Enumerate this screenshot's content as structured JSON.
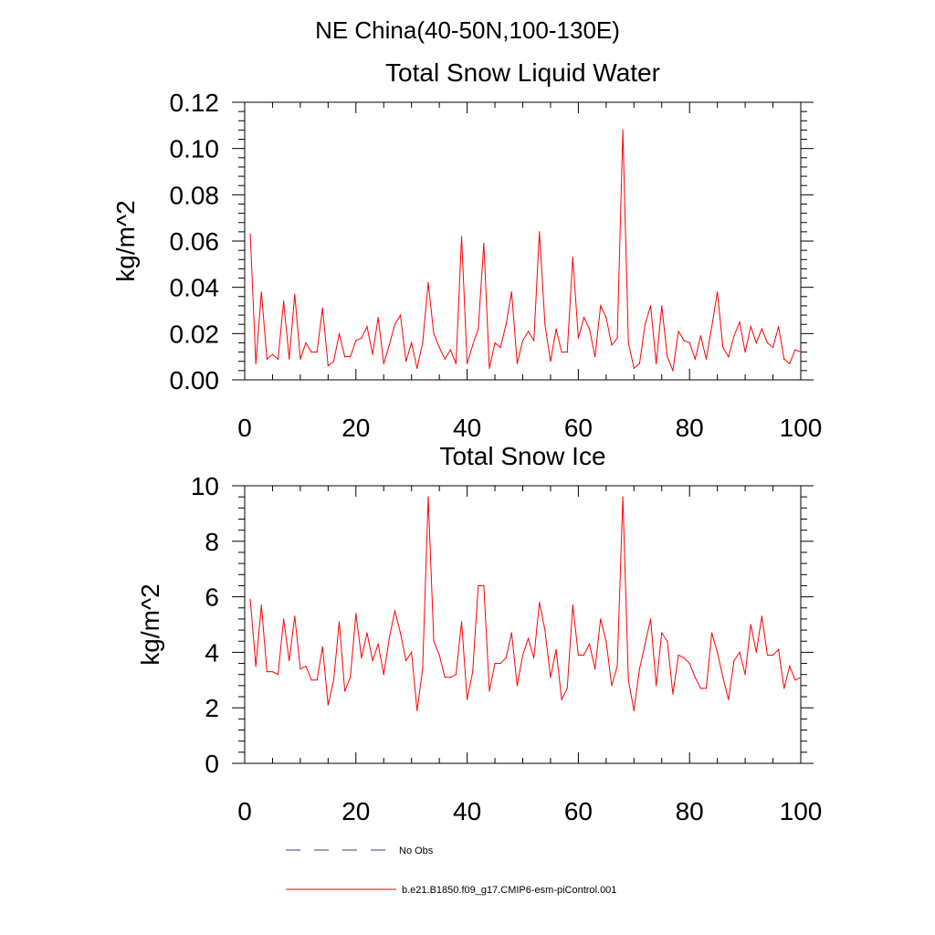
{
  "figure": {
    "suptitle": "NE China(40-50N,100-130E)"
  },
  "legend": {
    "items": [
      {
        "label": "No Obs",
        "color": "#3a3a8a",
        "dash": "dashed"
      },
      {
        "label": "b.e21.B1850.f09_g17.CMIP6-esm-piControl.001",
        "color": "#ff0000",
        "dash": "solid"
      }
    ]
  },
  "chart_data": [
    {
      "type": "line",
      "title": "Total Snow Liquid Water",
      "xlabel": "",
      "ylabel": "kg/m^2",
      "xlim": [
        0,
        100
      ],
      "ylim": [
        0,
        0.12
      ],
      "xticks": [
        "0",
        "20",
        "40",
        "60",
        "80",
        "100"
      ],
      "yticks": [
        "0.00",
        "0.02",
        "0.04",
        "0.06",
        "0.08",
        "0.10",
        "0.12"
      ],
      "grid": false,
      "series": [
        {
          "name": "b.e21.B1850.f09_g17.CMIP6-esm-piControl.001",
          "color": "#ff0000",
          "x": [
            1,
            2,
            3,
            4,
            5,
            6,
            7,
            8,
            9,
            10,
            11,
            12,
            13,
            14,
            15,
            16,
            17,
            18,
            19,
            20,
            21,
            22,
            23,
            24,
            25,
            26,
            27,
            28,
            29,
            30,
            31,
            32,
            33,
            34,
            35,
            36,
            37,
            38,
            39,
            40,
            41,
            42,
            43,
            44,
            45,
            46,
            47,
            48,
            49,
            50,
            51,
            52,
            53,
            54,
            55,
            56,
            57,
            58,
            59,
            60,
            61,
            62,
            63,
            64,
            65,
            66,
            67,
            68,
            69,
            70,
            71,
            72,
            73,
            74,
            75,
            76,
            77,
            78,
            79,
            80,
            81,
            82,
            83,
            84,
            85,
            86,
            87,
            88,
            89,
            90,
            91,
            92,
            93,
            94,
            95,
            96,
            97,
            98,
            99,
            100
          ],
          "values": [
            0.063,
            0.007,
            0.038,
            0.009,
            0.011,
            0.009,
            0.034,
            0.009,
            0.037,
            0.009,
            0.016,
            0.012,
            0.012,
            0.031,
            0.006,
            0.008,
            0.02,
            0.01,
            0.01,
            0.017,
            0.018,
            0.023,
            0.011,
            0.027,
            0.007,
            0.015,
            0.024,
            0.028,
            0.008,
            0.016,
            0.005,
            0.016,
            0.042,
            0.02,
            0.014,
            0.009,
            0.013,
            0.007,
            0.062,
            0.007,
            0.015,
            0.022,
            0.059,
            0.005,
            0.016,
            0.014,
            0.024,
            0.038,
            0.007,
            0.017,
            0.021,
            0.017,
            0.064,
            0.024,
            0.008,
            0.022,
            0.012,
            0.012,
            0.053,
            0.018,
            0.027,
            0.022,
            0.01,
            0.032,
            0.027,
            0.015,
            0.018,
            0.108,
            0.016,
            0.005,
            0.007,
            0.024,
            0.032,
            0.007,
            0.032,
            0.01,
            0.004,
            0.021,
            0.017,
            0.016,
            0.009,
            0.019,
            0.009,
            0.023,
            0.038,
            0.014,
            0.01,
            0.019,
            0.025,
            0.012,
            0.023,
            0.016,
            0.022,
            0.016,
            0.014,
            0.023,
            0.009,
            0.007,
            0.013,
            0.012
          ]
        }
      ]
    },
    {
      "type": "line",
      "title": "Total Snow Ice",
      "xlabel": "",
      "ylabel": "kg/m^2",
      "xlim": [
        0,
        100
      ],
      "ylim": [
        0,
        10
      ],
      "xticks": [
        "0",
        "20",
        "40",
        "60",
        "80",
        "100"
      ],
      "yticks": [
        "0",
        "2",
        "4",
        "6",
        "8",
        "10"
      ],
      "grid": false,
      "series": [
        {
          "name": "b.e21.B1850.f09_g17.CMIP6-esm-piControl.001",
          "color": "#ff0000",
          "x": [
            1,
            2,
            3,
            4,
            5,
            6,
            7,
            8,
            9,
            10,
            11,
            12,
            13,
            14,
            15,
            16,
            17,
            18,
            19,
            20,
            21,
            22,
            23,
            24,
            25,
            26,
            27,
            28,
            29,
            30,
            31,
            32,
            33,
            34,
            35,
            36,
            37,
            38,
            39,
            40,
            41,
            42,
            43,
            44,
            45,
            46,
            47,
            48,
            49,
            50,
            51,
            52,
            53,
            54,
            55,
            56,
            57,
            58,
            59,
            60,
            61,
            62,
            63,
            64,
            65,
            66,
            67,
            68,
            69,
            70,
            71,
            72,
            73,
            74,
            75,
            76,
            77,
            78,
            79,
            80,
            81,
            82,
            83,
            84,
            85,
            86,
            87,
            88,
            89,
            90,
            91,
            92,
            93,
            94,
            95,
            96,
            97,
            98,
            99,
            100
          ],
          "values": [
            5.9,
            3.5,
            5.7,
            3.3,
            3.3,
            3.2,
            5.2,
            3.7,
            5.3,
            3.4,
            3.5,
            3.0,
            3.0,
            4.2,
            2.1,
            3.0,
            5.1,
            2.6,
            3.1,
            5.4,
            3.8,
            4.7,
            3.7,
            4.3,
            3.2,
            4.5,
            5.5,
            4.7,
            3.7,
            4.0,
            1.9,
            3.4,
            9.6,
            4.4,
            3.9,
            3.1,
            3.1,
            3.2,
            5.1,
            2.3,
            3.3,
            6.4,
            6.4,
            2.6,
            3.6,
            3.6,
            3.8,
            4.7,
            2.8,
            3.9,
            4.5,
            3.8,
            5.8,
            4.8,
            3.1,
            4.1,
            2.3,
            2.7,
            5.7,
            3.9,
            3.9,
            4.3,
            3.4,
            5.2,
            4.4,
            2.8,
            3.5,
            9.6,
            3.0,
            1.9,
            3.4,
            4.3,
            5.2,
            2.8,
            4.7,
            4.4,
            2.5,
            3.9,
            3.8,
            3.6,
            3.1,
            2.7,
            2.7,
            4.7,
            4.0,
            3.1,
            2.3,
            3.7,
            4.0,
            3.2,
            5.0,
            4.0,
            5.3,
            3.9,
            3.9,
            4.1,
            2.7,
            3.5,
            3.0,
            3.1
          ]
        }
      ]
    }
  ]
}
